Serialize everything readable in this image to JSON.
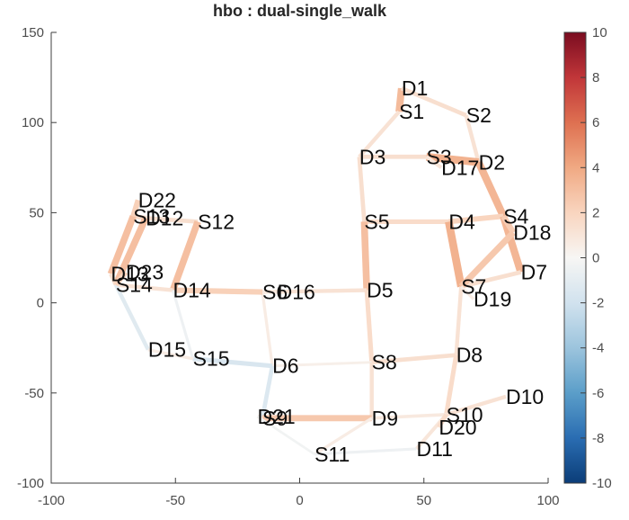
{
  "title": "hbo : dual-single_walk",
  "chart_data": {
    "type": "line",
    "subtype": "fnirs-probe-connectivity",
    "title": "hbo : dual-single_walk",
    "xlabel": "",
    "ylabel": "",
    "xlim": [
      -100,
      100
    ],
    "ylim": [
      -100,
      150
    ],
    "x_ticks": [
      -100,
      -50,
      0,
      50,
      100
    ],
    "y_ticks": [
      150,
      100,
      50,
      0,
      -50,
      -100
    ],
    "grid": false,
    "legend": null,
    "colorbar": {
      "position": "right",
      "min": -10,
      "max": 10,
      "ticks": [
        10,
        8,
        6,
        4,
        2,
        0,
        -2,
        -4,
        -6,
        -8,
        -10
      ],
      "colormap": "red-white-blue (positive red, negative blue)",
      "colormap_stops": [
        [
          -10,
          "#0b3d78"
        ],
        [
          -8,
          "#2a6db2"
        ],
        [
          -6,
          "#5b9ec9"
        ],
        [
          -4,
          "#9cc4dd"
        ],
        [
          -2,
          "#d1e2ee"
        ],
        [
          0,
          "#f7f6f4"
        ],
        [
          2,
          "#f9d5bf"
        ],
        [
          4,
          "#f0a983"
        ],
        [
          6,
          "#de7051"
        ],
        [
          8,
          "#c13639"
        ],
        [
          10,
          "#7a0c20"
        ]
      ]
    },
    "optodes": [
      {
        "id": "S1",
        "kind": "source",
        "x": 40,
        "y": 106
      },
      {
        "id": "S2",
        "kind": "source",
        "x": 67,
        "y": 104
      },
      {
        "id": "S3",
        "kind": "source",
        "x": 51,
        "y": 81
      },
      {
        "id": "S4",
        "kind": "source",
        "x": 82,
        "y": 48
      },
      {
        "id": "S5",
        "kind": "source",
        "x": 26,
        "y": 45
      },
      {
        "id": "S6",
        "kind": "source",
        "x": -15,
        "y": 6
      },
      {
        "id": "S7",
        "kind": "source",
        "x": 65,
        "y": 9
      },
      {
        "id": "S8",
        "kind": "source",
        "x": 29,
        "y": -33
      },
      {
        "id": "S9",
        "kind": "source",
        "x": -15,
        "y": -64
      },
      {
        "id": "S10",
        "kind": "source",
        "x": 59,
        "y": -62
      },
      {
        "id": "S11",
        "kind": "source",
        "x": 6,
        "y": -84
      },
      {
        "id": "S12",
        "kind": "source",
        "x": -41,
        "y": 45
      },
      {
        "id": "S13",
        "kind": "source",
        "x": -67,
        "y": 48
      },
      {
        "id": "S14",
        "kind": "source",
        "x": -74,
        "y": 10
      },
      {
        "id": "S15",
        "kind": "source",
        "x": -43,
        "y": -31
      },
      {
        "id": "D1",
        "kind": "detector",
        "x": 41,
        "y": 119
      },
      {
        "id": "D2",
        "kind": "detector",
        "x": 72,
        "y": 78
      },
      {
        "id": "D3",
        "kind": "detector",
        "x": 24,
        "y": 81
      },
      {
        "id": "D4",
        "kind": "detector",
        "x": 60,
        "y": 45
      },
      {
        "id": "D5",
        "kind": "detector",
        "x": 27,
        "y": 7
      },
      {
        "id": "D6",
        "kind": "detector",
        "x": -11,
        "y": -35
      },
      {
        "id": "D7",
        "kind": "detector",
        "x": 89,
        "y": 17
      },
      {
        "id": "D8",
        "kind": "detector",
        "x": 63,
        "y": -29
      },
      {
        "id": "D9",
        "kind": "detector",
        "x": 29,
        "y": -64
      },
      {
        "id": "D10",
        "kind": "detector",
        "x": 83,
        "y": -52
      },
      {
        "id": "D11",
        "kind": "detector",
        "x": 47,
        "y": -81
      },
      {
        "id": "D12",
        "kind": "detector",
        "x": -62,
        "y": 47
      },
      {
        "id": "D13",
        "kind": "detector",
        "x": -76,
        "y": 16
      },
      {
        "id": "D14",
        "kind": "detector",
        "x": -51,
        "y": 7
      },
      {
        "id": "D15",
        "kind": "detector",
        "x": -61,
        "y": -26
      },
      {
        "id": "D16",
        "kind": "detector",
        "x": -9,
        "y": 6
      },
      {
        "id": "D17",
        "kind": "detector",
        "x": 57,
        "y": 75
      },
      {
        "id": "D18",
        "kind": "detector",
        "x": 86,
        "y": 39
      },
      {
        "id": "D19",
        "kind": "detector",
        "x": 70,
        "y": 2
      },
      {
        "id": "D20",
        "kind": "detector",
        "x": 56,
        "y": -69
      },
      {
        "id": "D21",
        "kind": "detector",
        "x": -17,
        "y": -63
      },
      {
        "id": "D22",
        "kind": "detector",
        "x": -65,
        "y": 57
      },
      {
        "id": "D23",
        "kind": "detector",
        "x": -70,
        "y": 17
      }
    ],
    "channels": [
      {
        "source": "S1",
        "detector": "D1",
        "value": 3.2
      },
      {
        "source": "S1",
        "detector": "D3",
        "value": 1.2
      },
      {
        "source": "S2",
        "detector": "D1",
        "value": 1.4
      },
      {
        "source": "S2",
        "detector": "D2",
        "value": 1.2
      },
      {
        "source": "S3",
        "detector": "D2",
        "value": 3.6
      },
      {
        "source": "S3",
        "detector": "D3",
        "value": 1.4
      },
      {
        "source": "S3",
        "detector": "D17",
        "value": 1.0
      },
      {
        "source": "S4",
        "detector": "D2",
        "value": 3.4
      },
      {
        "source": "S4",
        "detector": "D4",
        "value": 2.0
      },
      {
        "source": "S4",
        "detector": "D7",
        "value": 3.4
      },
      {
        "source": "S4",
        "detector": "D18",
        "value": 2.4
      },
      {
        "source": "S5",
        "detector": "D3",
        "value": 1.4
      },
      {
        "source": "S5",
        "detector": "D4",
        "value": 1.6
      },
      {
        "source": "S5",
        "detector": "D5",
        "value": 3.0
      },
      {
        "source": "S6",
        "detector": "D5",
        "value": 1.2
      },
      {
        "source": "S6",
        "detector": "D6",
        "value": 0.6
      },
      {
        "source": "S6",
        "detector": "D14",
        "value": 2.2
      },
      {
        "source": "S6",
        "detector": "D16",
        "value": 0.8
      },
      {
        "source": "S7",
        "detector": "D4",
        "value": 3.6
      },
      {
        "source": "S7",
        "detector": "D7",
        "value": 1.4
      },
      {
        "source": "S7",
        "detector": "D8",
        "value": 1.2
      },
      {
        "source": "S7",
        "detector": "D18",
        "value": 2.6
      },
      {
        "source": "S7",
        "detector": "D19",
        "value": 0.6
      },
      {
        "source": "S8",
        "detector": "D5",
        "value": 1.6
      },
      {
        "source": "S8",
        "detector": "D6",
        "value": 0.4
      },
      {
        "source": "S8",
        "detector": "D8",
        "value": 1.4
      },
      {
        "source": "S8",
        "detector": "D9",
        "value": 1.2
      },
      {
        "source": "S9",
        "detector": "D6",
        "value": -1.4
      },
      {
        "source": "S9",
        "detector": "D9",
        "value": 2.6
      },
      {
        "source": "S9",
        "detector": "D21",
        "value": 1.0
      },
      {
        "source": "S10",
        "detector": "D8",
        "value": 1.6
      },
      {
        "source": "S10",
        "detector": "D9",
        "value": 0.8
      },
      {
        "source": "S10",
        "detector": "D10",
        "value": 1.2
      },
      {
        "source": "S10",
        "detector": "D11",
        "value": 1.0
      },
      {
        "source": "S10",
        "detector": "D20",
        "value": 1.6
      },
      {
        "source": "S11",
        "detector": "D9",
        "value": 0.6
      },
      {
        "source": "S11",
        "detector": "D11",
        "value": -0.5
      },
      {
        "source": "S11",
        "detector": "D21",
        "value": -0.3
      },
      {
        "source": "S12",
        "detector": "D12",
        "value": 1.4
      },
      {
        "source": "S12",
        "detector": "D14",
        "value": 3.0
      },
      {
        "source": "S13",
        "detector": "D12",
        "value": 1.6
      },
      {
        "source": "S13",
        "detector": "D13",
        "value": 3.0
      },
      {
        "source": "S13",
        "detector": "D22",
        "value": 2.2
      },
      {
        "source": "S14",
        "detector": "D12",
        "value": 3.0
      },
      {
        "source": "S14",
        "detector": "D13",
        "value": 1.4
      },
      {
        "source": "S14",
        "detector": "D14",
        "value": 1.2
      },
      {
        "source": "S14",
        "detector": "D15",
        "value": -1.2
      },
      {
        "source": "S14",
        "detector": "D23",
        "value": 2.0
      },
      {
        "source": "S15",
        "detector": "D6",
        "value": -1.6
      },
      {
        "source": "S15",
        "detector": "D14",
        "value": -0.5
      },
      {
        "source": "S15",
        "detector": "D15",
        "value": 0.6
      }
    ]
  }
}
